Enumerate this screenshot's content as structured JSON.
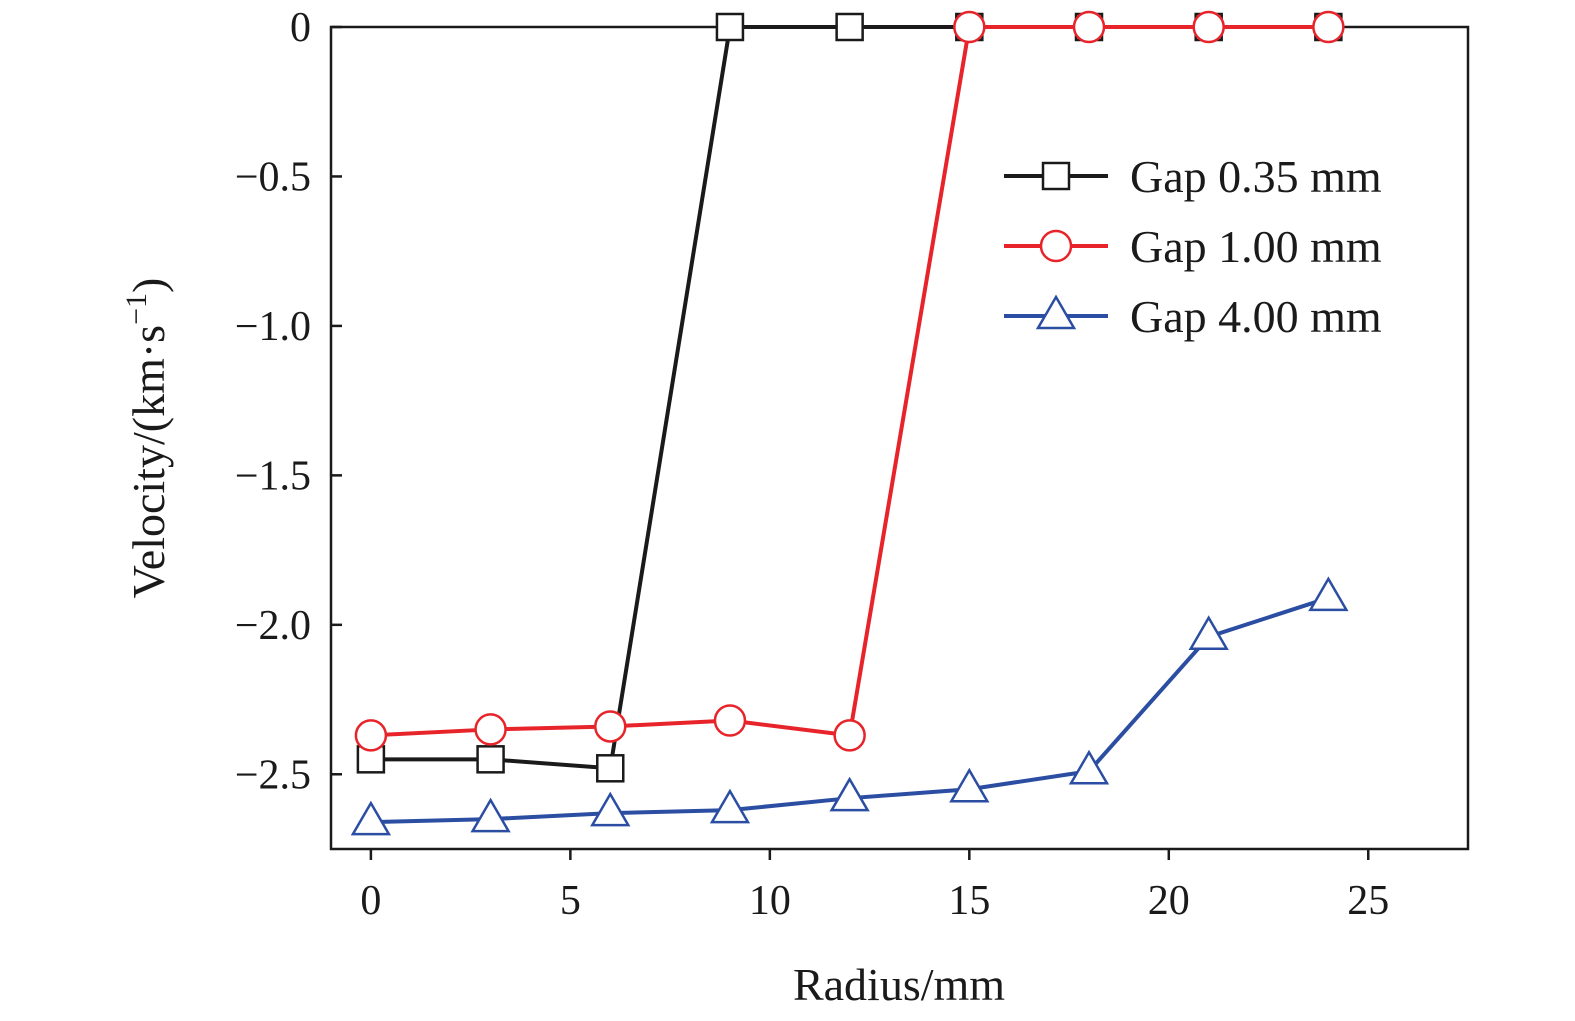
{
  "chart_data": {
    "type": "line",
    "xlabel": "Radius/mm",
    "ylabel": "Velocity/(km·s",
    "ylabel_sup": "−1",
    "ylabel_close": ")",
    "xlim": [
      -1,
      27.5
    ],
    "ylim": [
      -2.75,
      0
    ],
    "xticks": [
      0,
      5,
      10,
      15,
      20,
      25
    ],
    "xtick_labels": [
      "0",
      "5",
      "10",
      "15",
      "20",
      "25"
    ],
    "yticks": [
      0,
      -0.5,
      -1.0,
      -1.5,
      -2.0,
      -2.5
    ],
    "ytick_labels": [
      "0",
      "−0.5",
      "−1.0",
      "−1.5",
      "−2.0",
      "−2.5"
    ],
    "grid": false,
    "legend_position": "top-right",
    "series": [
      {
        "name": "Gap 0.35 mm",
        "color": "#1a1a1a",
        "marker": "square",
        "x": [
          0,
          3,
          6,
          9,
          12,
          15,
          18,
          21,
          24
        ],
        "y": [
          -2.45,
          -2.45,
          -2.48,
          0,
          0,
          0,
          0,
          0,
          0
        ]
      },
      {
        "name": "Gap 1.00 mm",
        "color": "#e8242b",
        "marker": "circle",
        "x": [
          0,
          3,
          6,
          9,
          12,
          15,
          18,
          21,
          24
        ],
        "y": [
          -2.37,
          -2.35,
          -2.34,
          -2.32,
          -2.37,
          0,
          0,
          0,
          0
        ]
      },
      {
        "name": "Gap 4.00 mm",
        "color": "#2b4ea2",
        "marker": "triangle",
        "x": [
          0,
          3,
          6,
          9,
          12,
          15,
          18,
          21,
          24
        ],
        "y": [
          -2.66,
          -2.65,
          -2.63,
          -2.62,
          -2.58,
          -2.55,
          -2.49,
          -2.04,
          -1.91
        ]
      }
    ]
  }
}
